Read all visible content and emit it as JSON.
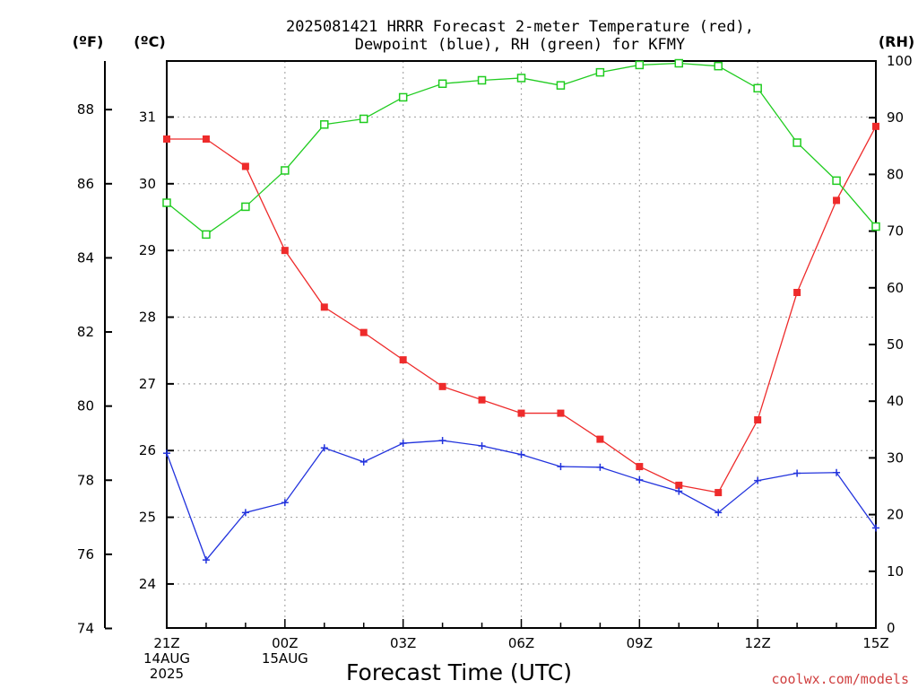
{
  "chart": {
    "title_line1": "2025081421 HRRR Forecast 2-meter Temperature (red),",
    "title_line2": "Dewpoint (blue), RH (green) for KFMY",
    "unit_f": "(ºF)",
    "unit_c": "(ºC)",
    "unit_rh": "(RH)",
    "xlabel": "Forecast Time (UTC)",
    "credit": "coolwx.com/models",
    "x_tick_labels": [
      {
        "hour": 0,
        "lines": [
          "21Z",
          "14AUG",
          "2025"
        ]
      },
      {
        "hour": 3,
        "lines": [
          "00Z",
          "15AUG"
        ]
      },
      {
        "hour": 6,
        "lines": [
          "03Z"
        ]
      },
      {
        "hour": 9,
        "lines": [
          "06Z"
        ]
      },
      {
        "hour": 12,
        "lines": [
          "09Z"
        ]
      },
      {
        "hour": 15,
        "lines": [
          "12Z"
        ]
      },
      {
        "hour": 18,
        "lines": [
          "15Z"
        ]
      }
    ]
  },
  "chart_data": {
    "type": "line",
    "title": "2025081421 HRRR Forecast 2-meter Temperature (red), Dewpoint (blue), RH (green) for KFMY",
    "xlabel": "Forecast Time (UTC)",
    "x": [
      "21Z",
      "22Z",
      "23Z",
      "00Z",
      "01Z",
      "02Z",
      "03Z",
      "04Z",
      "05Z",
      "06Z",
      "07Z",
      "08Z",
      "09Z",
      "10Z",
      "11Z",
      "12Z",
      "13Z",
      "14Z",
      "15Z"
    ],
    "axes": {
      "fahrenheit": {
        "ticks": [
          74,
          76,
          78,
          80,
          82,
          84,
          86,
          88
        ]
      },
      "celsius": {
        "range": [
          23.34,
          31.84
        ],
        "ticks": [
          24,
          25,
          26,
          27,
          28,
          29,
          30,
          31
        ]
      },
      "rh": {
        "range": [
          0,
          100
        ],
        "ticks": [
          0,
          10,
          20,
          30,
          40,
          50,
          60,
          70,
          80,
          90,
          100
        ]
      }
    },
    "grid": true,
    "series": [
      {
        "name": "Temperature",
        "axis": "celsius",
        "color": "#ee2b2b",
        "marker": "filled-square",
        "values": [
          30.67,
          30.67,
          30.26,
          29.0,
          28.15,
          27.77,
          27.36,
          26.96,
          26.76,
          26.56,
          26.56,
          26.17,
          25.76,
          25.48,
          25.37,
          26.46,
          28.37,
          29.75,
          30.86
        ]
      },
      {
        "name": "Dewpoint",
        "axis": "celsius",
        "color": "#2233dd",
        "marker": "plus",
        "values": [
          25.96,
          24.36,
          25.07,
          25.22,
          26.04,
          25.83,
          26.11,
          26.15,
          26.07,
          25.94,
          25.76,
          25.75,
          25.56,
          25.39,
          25.07,
          25.55,
          25.66,
          25.67,
          24.84
        ]
      },
      {
        "name": "RH",
        "axis": "rh",
        "color": "#20cc20",
        "marker": "open-square",
        "values": [
          75.0,
          69.4,
          74.3,
          80.7,
          88.8,
          89.8,
          93.6,
          96.0,
          96.6,
          97.0,
          95.7,
          98.0,
          99.3,
          99.6,
          99.1,
          95.2,
          85.6,
          78.9,
          70.8
        ]
      }
    ]
  }
}
